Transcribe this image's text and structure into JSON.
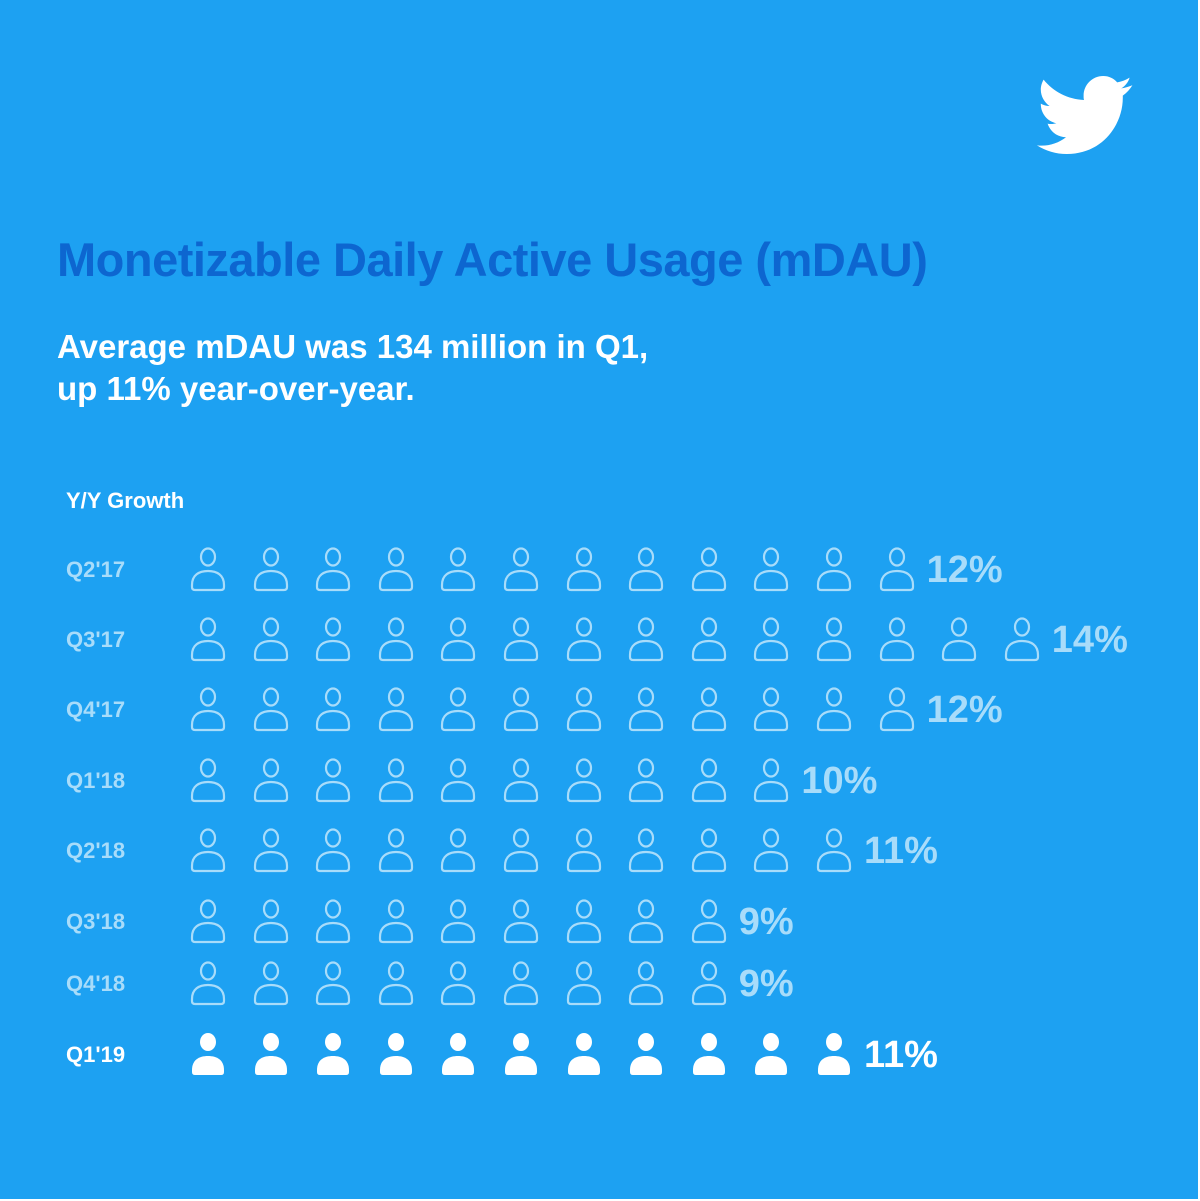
{
  "title": "Monetizable Daily Active Usage (mDAU)",
  "subtitle_lines": [
    "Average mDAU was 134 million in Q1,",
    "up 11% year-over-year."
  ],
  "logo_icon": "twitter-bird-icon",
  "colors": {
    "background": "#1da1f2",
    "title": "#0d66d0",
    "past_quarters": "#a8dcfa",
    "current_quarter": "#ffffff"
  },
  "chart_data": {
    "type": "pictogram",
    "ylabel": "Y/Y Growth",
    "unit": "%",
    "icon": "person-icon",
    "icon_value": 1,
    "categories": [
      "Q2'17",
      "Q3'17",
      "Q4'17",
      "Q1'18",
      "Q2'18",
      "Q3'18",
      "Q4'18",
      "Q1'19"
    ],
    "values": [
      12,
      14,
      12,
      10,
      11,
      9,
      9,
      11
    ],
    "labels": [
      "12%",
      "14%",
      "12%",
      "10%",
      "11%",
      "9%",
      "9%",
      "11%"
    ],
    "highlight_category": "Q1'19"
  }
}
